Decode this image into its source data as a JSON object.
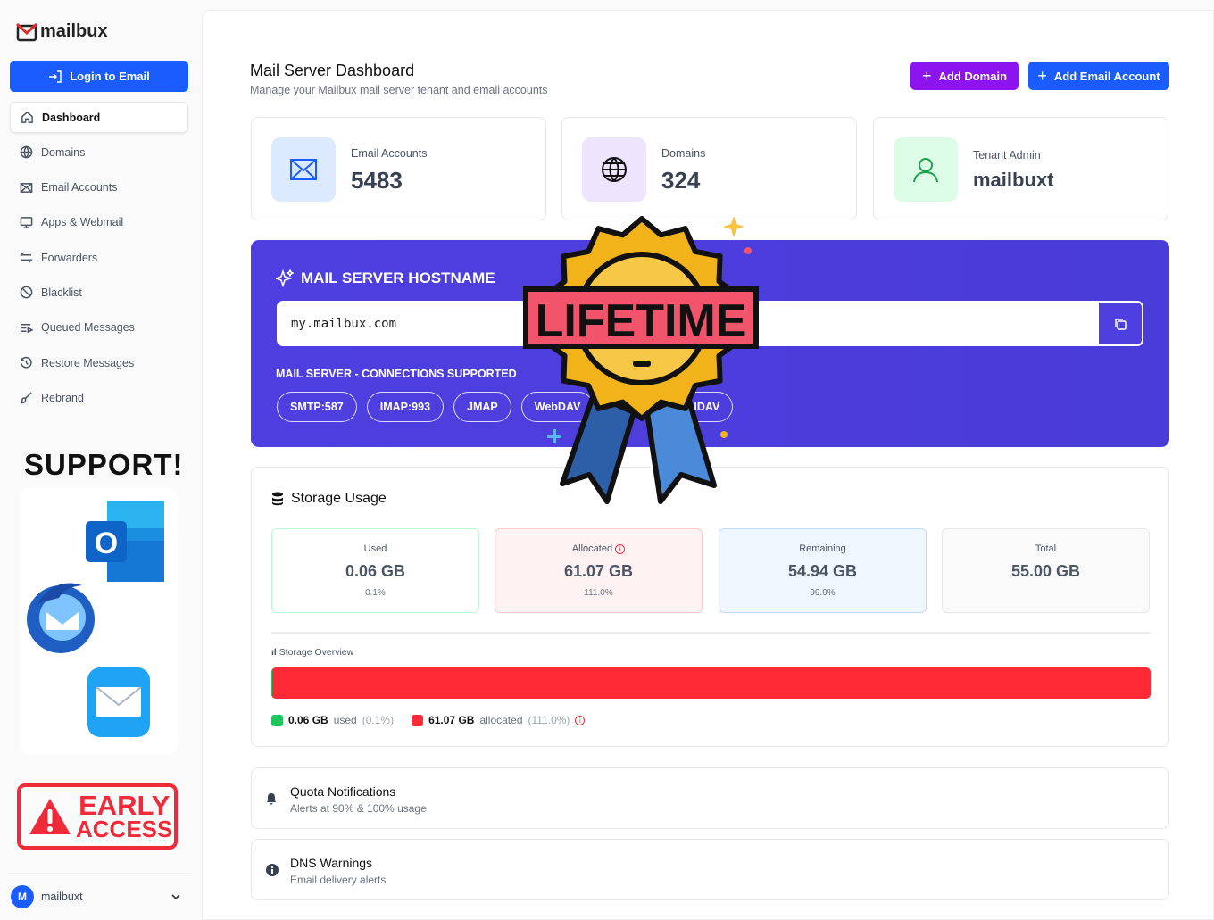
{
  "brand": {
    "name": "mailbux"
  },
  "sidebar": {
    "login_label": "Login to Email",
    "items": [
      {
        "label": "Dashboard",
        "icon": "home-icon",
        "active": true
      },
      {
        "label": "Domains",
        "icon": "globe-icon"
      },
      {
        "label": "Email Accounts",
        "icon": "envelope-icon"
      },
      {
        "label": "Apps & Webmail",
        "icon": "monitor-icon"
      },
      {
        "label": "Forwarders",
        "icon": "arrows-icon"
      },
      {
        "label": "Blacklist",
        "icon": "ban-icon"
      },
      {
        "label": "Queued Messages",
        "icon": "queue-icon"
      },
      {
        "label": "Restore Messages",
        "icon": "history-icon"
      },
      {
        "label": "Rebrand",
        "icon": "brush-icon"
      }
    ],
    "support_title": "SUPPORT!",
    "early_access": {
      "line1": "EARLY",
      "line2": "ACCESS"
    },
    "user": {
      "initial": "M",
      "name": "mailbuxt"
    }
  },
  "header": {
    "title": "Mail Server Dashboard",
    "subtitle": "Manage your Mailbux mail server tenant and email accounts",
    "add_domain": "Add Domain",
    "add_email": "Add Email Account"
  },
  "stats": [
    {
      "label": "Email Accounts",
      "value": "5483",
      "icon": "envelope-icon"
    },
    {
      "label": "Domains",
      "value": "324",
      "icon": "globe-icon"
    },
    {
      "label": "Tenant Admin",
      "value": "mailbuxt",
      "icon": "user-icon"
    }
  ],
  "hostname": {
    "title": "MAIL SERVER HOSTNAME",
    "value": "my.mailbux.com",
    "connections_title": "MAIL SERVER - CONNECTIONS SUPPORTED",
    "protocols": [
      "SMTP:587",
      "IMAP:993",
      "JMAP",
      "WebDAV",
      "CalDAV"
    ]
  },
  "badge": {
    "text": "LIFETIME"
  },
  "storage": {
    "title": "Storage Usage",
    "boxes": [
      {
        "label": "Used",
        "value": "0.06 GB",
        "percent": "0.1%"
      },
      {
        "label": "Allocated",
        "value": "61.07 GB",
        "percent": "111.0%"
      },
      {
        "label": "Remaining",
        "value": "54.94 GB",
        "percent": "99.9%"
      },
      {
        "label": "Total",
        "value": "55.00 GB"
      }
    ],
    "overview_label": "Storage Overview",
    "used_fraction": 0.001,
    "allocated_fraction": 1.11,
    "legend": {
      "used_value": "0.06 GB",
      "used_label": "used",
      "used_pct": "(0.1%)",
      "alloc_value": "61.07 GB",
      "alloc_label": "allocated",
      "alloc_pct": "(111.0%)"
    }
  },
  "notifications": [
    {
      "title": "Quota Notifications",
      "desc": "Alerts at 90% & 100% usage",
      "icon": "bell-icon"
    },
    {
      "title": "DNS Warnings",
      "desc": "Email delivery alerts",
      "icon": "info-icon"
    }
  ],
  "colors": {
    "primary": "#1a5cff",
    "purple": "#8b14f0",
    "banner": "#4f3fe0",
    "danger": "#ff2a35",
    "success": "#1fc45a"
  }
}
